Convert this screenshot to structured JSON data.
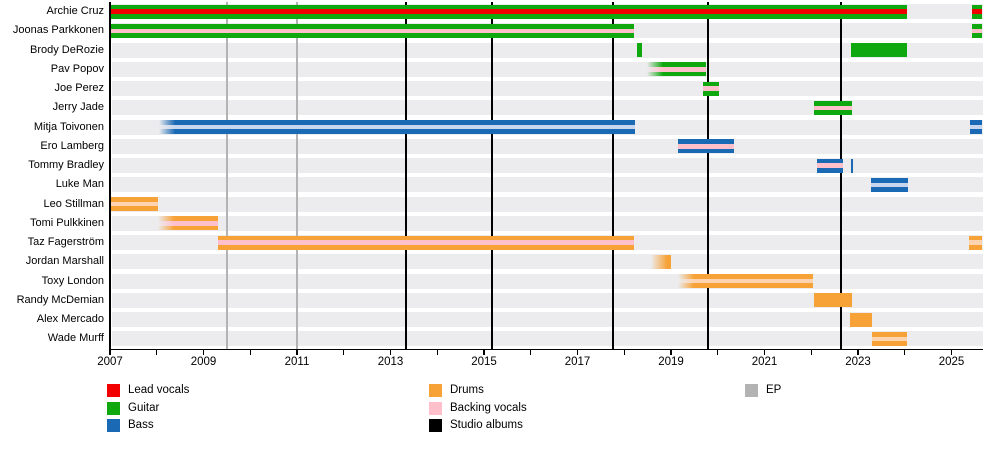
{
  "chart_data": {
    "type": "bar",
    "variant": "horizontal band-member timeline (Gantt)",
    "title": "",
    "x_axis": {
      "tick_start_year": 2007,
      "tick_end_year": 2025,
      "tick_step": 1,
      "label_years": [
        "2007",
        "2009",
        "2011",
        "2013",
        "2015",
        "2017",
        "2019",
        "2021",
        "2023",
        "2025"
      ],
      "plot_end_year": 2025.66
    },
    "colors": {
      "lead-vocals": "#f20000",
      "guitar": "#0fa80f",
      "bass": "#1a69b4",
      "drums": "#f7a237",
      "backing-vocals": "#ffc0cb",
      "studio-albums": "#000000",
      "ep": "#b3b3b3",
      "bass-light": "#c7d5ee",
      "drums-light": "#fdd3b0",
      "row-band": "#ececee"
    },
    "members": [
      {
        "name": "Archie Cruz",
        "segments": [
          {
            "start": 2007.0,
            "end": 2024.05,
            "role": "guitar",
            "stripe": "lead-vocals"
          },
          {
            "start": 2025.43,
            "end": 2025.66,
            "role": "guitar",
            "stripe": "lead-vocals"
          }
        ]
      },
      {
        "name": "Joonas Parkkonen",
        "segments": [
          {
            "start": 2007.0,
            "end": 2018.2,
            "role": "guitar",
            "stripe": "backing-vocals"
          },
          {
            "start": 2025.43,
            "end": 2025.66,
            "role": "guitar",
            "stripe": "backing-vocals"
          }
        ]
      },
      {
        "name": "Brody DeRozie",
        "segments": [
          {
            "start": 2018.28,
            "end": 2018.37,
            "role": "guitar",
            "stripe": null
          },
          {
            "start": 2022.86,
            "end": 2024.05,
            "role": "guitar",
            "stripe": null
          }
        ]
      },
      {
        "name": "Pav Popov",
        "segments": [
          {
            "start": 2018.48,
            "end": 2019.74,
            "role": "guitar",
            "stripe": "backing-vocals",
            "fade_left": true
          }
        ]
      },
      {
        "name": "Joe Perez",
        "segments": [
          {
            "start": 2019.68,
            "end": 2020.02,
            "role": "guitar",
            "stripe": "backing-vocals"
          }
        ]
      },
      {
        "name": "Jerry Jade",
        "segments": [
          {
            "start": 2022.05,
            "end": 2022.88,
            "role": "guitar",
            "stripe": "backing-vocals"
          }
        ]
      },
      {
        "name": "Mitja Toivonen",
        "segments": [
          {
            "start": 2008.05,
            "end": 2018.24,
            "role": "bass",
            "stripe": "bass-light",
            "fade_left": true
          },
          {
            "start": 2025.4,
            "end": 2025.66,
            "role": "bass",
            "stripe": "bass-light"
          }
        ]
      },
      {
        "name": "Ero Lamberg",
        "segments": [
          {
            "start": 2019.14,
            "end": 2020.34,
            "role": "bass",
            "stripe": "backing-vocals"
          }
        ]
      },
      {
        "name": "Tommy Bradley",
        "segments": [
          {
            "start": 2022.13,
            "end": 2022.69,
            "role": "bass",
            "stripe": "backing-vocals"
          },
          {
            "start": 2022.84,
            "end": 2022.9,
            "role": "bass",
            "stripe": null
          }
        ]
      },
      {
        "name": "Luke Man",
        "segments": [
          {
            "start": 2023.27,
            "end": 2024.08,
            "role": "bass",
            "stripe": "bass-light"
          }
        ]
      },
      {
        "name": "Leo Stillman",
        "segments": [
          {
            "start": 2007.02,
            "end": 2008.02,
            "role": "drums",
            "stripe": "drums-light"
          }
        ]
      },
      {
        "name": "Tomi Pulkkinen",
        "segments": [
          {
            "start": 2008.02,
            "end": 2009.32,
            "role": "drums",
            "stripe": "backing-vocals",
            "fade_left": true
          }
        ]
      },
      {
        "name": "Taz Fagerström",
        "segments": [
          {
            "start": 2009.3,
            "end": 2018.2,
            "role": "drums",
            "stripe": "backing-vocals"
          },
          {
            "start": 2025.37,
            "end": 2025.66,
            "role": "drums",
            "stripe": "drums-light"
          }
        ]
      },
      {
        "name": "Jordan Marshall",
        "segments": [
          {
            "start": 2018.58,
            "end": 2018.99,
            "role": "drums",
            "stripe": null,
            "fade_left": true
          }
        ]
      },
      {
        "name": "Toxy London",
        "segments": [
          {
            "start": 2019.16,
            "end": 2022.03,
            "role": "drums",
            "stripe": "drums-light",
            "fade_left": true
          }
        ]
      },
      {
        "name": "Randy McDemian",
        "segments": [
          {
            "start": 2022.05,
            "end": 2022.88,
            "role": "drums",
            "stripe": null
          }
        ]
      },
      {
        "name": "Alex Mercado",
        "segments": [
          {
            "start": 2022.82,
            "end": 2023.31,
            "role": "drums",
            "stripe": null
          }
        ]
      },
      {
        "name": "Wade Murff",
        "segments": [
          {
            "start": 2023.31,
            "end": 2024.05,
            "role": "drums",
            "stripe": "drums-light"
          }
        ]
      }
    ],
    "events": {
      "studio_albums_years": [
        2013.33,
        2015.17,
        2017.76,
        2019.79,
        2022.64
      ],
      "ep_years": [
        2009.5,
        2011.0
      ]
    },
    "legend": {
      "columns": [
        [
          {
            "label": "Lead vocals",
            "role": "lead-vocals"
          },
          {
            "label": "Guitar",
            "role": "guitar"
          },
          {
            "label": "Bass",
            "role": "bass"
          }
        ],
        [
          {
            "label": "Drums",
            "role": "drums"
          },
          {
            "label": "Backing vocals",
            "role": "backing-vocals"
          },
          {
            "label": "Studio albums",
            "role": "studio-albums"
          }
        ],
        [
          {
            "label": "EP",
            "role": "ep"
          }
        ]
      ]
    }
  }
}
